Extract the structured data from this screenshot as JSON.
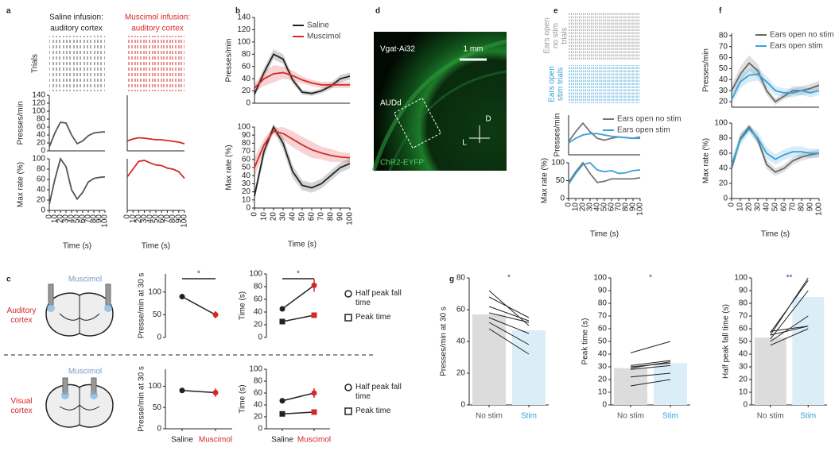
{
  "chart_data": [
    {
      "type": "line",
      "panel": "a",
      "title": "Saline infusion:",
      "subtitle": "auditory cortex",
      "raster_label": "Trials",
      "ylabel": "Presses/min",
      "x": [
        0,
        10,
        20,
        30,
        40,
        50,
        60,
        70,
        80,
        90,
        100
      ],
      "values": [
        10,
        45,
        72,
        70,
        40,
        18,
        25,
        38,
        45,
        47,
        48
      ],
      "color": "#555555",
      "xlim": [
        0,
        100
      ],
      "ylim": [
        0,
        140
      ],
      "yticks": [
        0,
        20,
        40,
        60,
        80,
        100,
        120,
        140
      ]
    },
    {
      "type": "line",
      "title": "Muscimol infusion:",
      "subtitle": "auditory cortex",
      "x": [
        0,
        10,
        20,
        30,
        40,
        50,
        60,
        70,
        80,
        90,
        100
      ],
      "values": [
        25,
        30,
        33,
        32,
        30,
        28,
        28,
        26,
        24,
        22,
        18
      ],
      "color": "#d62728",
      "xlim": [
        0,
        100
      ],
      "ylim": [
        0,
        140
      ]
    },
    {
      "type": "line",
      "ylabel": "Max rate (%)",
      "xlabel": "Time (s)",
      "x": [
        0,
        10,
        20,
        30,
        40,
        50,
        60,
        70,
        80,
        90,
        100
      ],
      "values": [
        12,
        60,
        100,
        85,
        40,
        22,
        35,
        55,
        62,
        64,
        65
      ],
      "color": "#555555",
      "xlim": [
        0,
        100
      ],
      "ylim": [
        0,
        100
      ],
      "yticks": [
        0,
        20,
        40,
        60,
        80,
        100
      ],
      "xticks": [
        0,
        10,
        20,
        30,
        40,
        50,
        60,
        70,
        80,
        90,
        100
      ]
    },
    {
      "type": "line",
      "xlabel": "Time (s)",
      "x": [
        0,
        10,
        20,
        30,
        40,
        50,
        60,
        70,
        80,
        90,
        100
      ],
      "values": [
        65,
        80,
        95,
        97,
        92,
        88,
        87,
        82,
        80,
        75,
        62
      ],
      "color": "#d62728",
      "xlim": [
        0,
        100
      ],
      "ylim": [
        0,
        100
      ],
      "xticks": [
        0,
        10,
        20,
        30,
        40,
        50,
        60,
        70,
        80,
        90,
        100
      ]
    },
    {
      "type": "line",
      "panel": "b",
      "ylabel": "Presses/min",
      "x": [
        0,
        10,
        20,
        30,
        40,
        50,
        60,
        70,
        80,
        90,
        100
      ],
      "series": [
        {
          "name": "Saline",
          "color": "#222222",
          "values": [
            15,
            50,
            80,
            72,
            38,
            18,
            16,
            20,
            28,
            40,
            44
          ],
          "error": [
            5,
            8,
            8,
            8,
            6,
            4,
            4,
            4,
            5,
            6,
            6
          ]
        },
        {
          "name": "Muscimol",
          "color": "#d62728",
          "values": [
            25,
            40,
            48,
            50,
            45,
            38,
            33,
            30,
            30,
            30,
            30
          ],
          "error": [
            6,
            12,
            14,
            10,
            8,
            6,
            5,
            5,
            5,
            5,
            5
          ]
        }
      ],
      "xlim": [
        0,
        100
      ],
      "ylim": [
        0,
        140
      ],
      "yticks": [
        0,
        20,
        40,
        60,
        80,
        100,
        120,
        140
      ]
    },
    {
      "type": "line",
      "ylabel": "Max rate (%)",
      "xlabel": "Time (s)",
      "x": [
        0,
        10,
        20,
        30,
        40,
        50,
        60,
        70,
        80,
        90,
        100
      ],
      "series": [
        {
          "color": "#222222",
          "values": [
            15,
            70,
            100,
            80,
            45,
            28,
            25,
            30,
            40,
            50,
            55
          ],
          "error": [
            6,
            8,
            4,
            8,
            8,
            6,
            6,
            6,
            6,
            6,
            6
          ]
        },
        {
          "color": "#d62728",
          "values": [
            50,
            78,
            95,
            92,
            85,
            78,
            72,
            68,
            65,
            63,
            62
          ],
          "error": [
            12,
            8,
            4,
            8,
            10,
            10,
            10,
            8,
            8,
            6,
            6
          ]
        }
      ],
      "xlim": [
        0,
        100
      ],
      "ylim": [
        0,
        100
      ],
      "yticks": [
        0,
        10,
        20,
        30,
        40,
        50,
        60,
        70,
        80,
        90,
        100
      ],
      "xticks": [
        0,
        10,
        20,
        30,
        40,
        50,
        60,
        70,
        80,
        90,
        100
      ]
    },
    {
      "type": "image",
      "panel": "d",
      "labels": [
        "Vgat-Ai32",
        "1 mm",
        "AUDd",
        "D",
        "L",
        "ChR2-EYFP"
      ]
    },
    {
      "type": "line",
      "panel": "e",
      "raster_labels": [
        [
          "Ears open",
          "no stim",
          "trials"
        ],
        [
          "Ears open",
          "stim trials"
        ]
      ],
      "ylabel": "Presses/min",
      "x": [
        0,
        10,
        20,
        30,
        40,
        50,
        60,
        70,
        80,
        90,
        100
      ],
      "series": [
        {
          "name": "Ears open no stim",
          "color": "#777777",
          "values": [
            20,
            35,
            48,
            35,
            25,
            22,
            25,
            27,
            26,
            25,
            27
          ]
        },
        {
          "name": "Ears open stim",
          "color": "#3a9fd6",
          "values": [
            18,
            25,
            30,
            32,
            32,
            30,
            28,
            27,
            26,
            25,
            25
          ]
        }
      ],
      "xlim": [
        0,
        100
      ],
      "ylim": [
        0,
        60
      ]
    },
    {
      "type": "line",
      "ylabel": "Max rate (%)",
      "xlabel": "Time (s)",
      "x": [
        0,
        10,
        20,
        30,
        40,
        50,
        60,
        70,
        80,
        90,
        100
      ],
      "series": [
        {
          "color": "#777777",
          "values": [
            45,
            75,
            100,
            70,
            45,
            48,
            55,
            55,
            55,
            55,
            58
          ]
        },
        {
          "color": "#3a9fd6",
          "values": [
            40,
            70,
            95,
            100,
            80,
            75,
            78,
            70,
            72,
            78,
            80
          ]
        }
      ],
      "xlim": [
        0,
        100
      ],
      "ylim": [
        0,
        100
      ],
      "yticks": [
        0,
        50,
        100
      ],
      "xticks": [
        0,
        10,
        20,
        30,
        40,
        50,
        60,
        70,
        80,
        90,
        100
      ]
    },
    {
      "type": "line",
      "panel": "f",
      "ylabel": "Presses/min",
      "x": [
        0,
        10,
        20,
        30,
        40,
        50,
        60,
        70,
        80,
        90,
        100
      ],
      "series": [
        {
          "name": "Ears open no stim",
          "color": "#666666",
          "values": [
            30,
            45,
            55,
            48,
            30,
            20,
            25,
            30,
            30,
            32,
            35
          ],
          "error": [
            5,
            7,
            7,
            6,
            4,
            3,
            3,
            4,
            4,
            4,
            4
          ]
        },
        {
          "name": "Ears open stim",
          "color": "#3a9fd6",
          "values": [
            22,
            38,
            44,
            45,
            38,
            30,
            28,
            28,
            30,
            28,
            30
          ],
          "error": [
            4,
            6,
            6,
            6,
            5,
            4,
            4,
            4,
            4,
            4,
            4
          ]
        }
      ],
      "xlim": [
        0,
        100
      ],
      "ylim": [
        15,
        82
      ],
      "yticks": [
        20,
        30,
        40,
        50,
        60,
        70,
        80
      ]
    },
    {
      "type": "line",
      "ylabel": "Max rate (%)",
      "xlabel": "Time (s)",
      "x": [
        0,
        10,
        20,
        30,
        40,
        50,
        60,
        70,
        80,
        90,
        100
      ],
      "series": [
        {
          "color": "#666666",
          "values": [
            40,
            80,
            95,
            78,
            45,
            35,
            40,
            50,
            55,
            58,
            60
          ],
          "error": [
            5,
            6,
            4,
            6,
            6,
            5,
            5,
            5,
            5,
            5,
            5
          ]
        },
        {
          "color": "#3a9fd6",
          "values": [
            45,
            78,
            92,
            80,
            60,
            52,
            58,
            62,
            62,
            60,
            60
          ],
          "error": [
            8,
            8,
            5,
            8,
            8,
            7,
            7,
            7,
            7,
            6,
            6
          ]
        }
      ],
      "xlim": [
        0,
        100
      ],
      "ylim": [
        0,
        100
      ],
      "yticks": [
        0,
        20,
        40,
        60,
        80,
        100
      ],
      "xticks": [
        0,
        10,
        20,
        30,
        40,
        50,
        60,
        70,
        80,
        90,
        100
      ]
    },
    {
      "type": "dot-pair",
      "panel": "c",
      "infusion": "Muscimol",
      "region": "Auditory cortex",
      "ylabel": "Presse/min at 30 s",
      "values": [
        90,
        50
      ],
      "error": [
        6,
        8
      ],
      "point_colors": [
        "#222222",
        "#d62728"
      ],
      "ylim": [
        0,
        140
      ],
      "yticks": [
        0,
        50,
        100
      ],
      "significance": "*"
    },
    {
      "type": "dot-pair",
      "ylabel": "Time (s)",
      "series": [
        {
          "name": "Half peak fall time",
          "marker": "circle",
          "values": [
            45,
            82
          ],
          "error": [
            3,
            10
          ]
        },
        {
          "name": "Peak time",
          "marker": "square",
          "values": [
            25,
            35
          ],
          "error": [
            2,
            4
          ]
        }
      ],
      "point_colors": [
        "#222222",
        "#d62728"
      ],
      "ylim": [
        0,
        100
      ],
      "yticks": [
        0,
        20,
        40,
        60,
        80,
        100
      ],
      "significance": "*"
    },
    {
      "type": "dot-pair",
      "infusion": "Muscimol",
      "region": "Visual cortex",
      "ylabel": "Presse/min at 30 s",
      "categories": [
        "Saline",
        "Muscimol"
      ],
      "category_colors": [
        "#222222",
        "#d62728"
      ],
      "values": [
        90,
        85
      ],
      "error": [
        6,
        10
      ],
      "point_colors": [
        "#222222",
        "#d62728"
      ],
      "ylim": [
        0,
        140
      ],
      "yticks": [
        0,
        50,
        100
      ]
    },
    {
      "type": "dot-pair",
      "ylabel": "Time (s)",
      "categories": [
        "Saline",
        "Muscimol"
      ],
      "category_colors": [
        "#222222",
        "#d62728"
      ],
      "series": [
        {
          "name": "Half peak fall time",
          "marker": "circle",
          "values": [
            47,
            60
          ],
          "error": [
            3,
            8
          ]
        },
        {
          "name": "Peak time",
          "marker": "square",
          "values": [
            25,
            28
          ],
          "error": [
            2,
            2
          ]
        }
      ],
      "point_colors": [
        "#222222",
        "#d62728"
      ],
      "ylim": [
        0,
        100
      ],
      "yticks": [
        0,
        20,
        40,
        60,
        80,
        100
      ]
    },
    {
      "type": "bar",
      "panel": "g",
      "ylabel": "Presses/min at 30 s",
      "categories": [
        "No stim",
        "Stim"
      ],
      "category_colors": [
        "#555555",
        "#3a9fd6"
      ],
      "values": [
        57,
        47
      ],
      "colors": [
        "#dcdcdc",
        "#dbeef8"
      ],
      "pairs": [
        [
          72,
          50
        ],
        [
          68,
          55
        ],
        [
          62,
          53
        ],
        [
          58,
          52
        ],
        [
          55,
          45
        ],
        [
          52,
          38
        ],
        [
          48,
          32
        ]
      ],
      "ylim": [
        0,
        80
      ],
      "yticks": [
        0,
        20,
        40,
        60,
        80
      ],
      "significance": "*"
    },
    {
      "type": "bar",
      "ylabel": "Peak time (s)",
      "categories": [
        "No stim",
        "Stim"
      ],
      "category_colors": [
        "#555555",
        "#3a9fd6"
      ],
      "values": [
        29,
        33
      ],
      "colors": [
        "#dcdcdc",
        "#dbeef8"
      ],
      "pairs": [
        [
          41,
          50
        ],
        [
          31,
          35
        ],
        [
          30,
          33
        ],
        [
          29,
          34
        ],
        [
          28,
          31
        ],
        [
          22,
          25
        ],
        [
          15,
          20
        ]
      ],
      "ylim": [
        0,
        100
      ],
      "yticks": [
        0,
        10,
        20,
        30,
        40,
        50,
        60,
        70,
        80,
        90,
        100
      ],
      "significance": "*"
    },
    {
      "type": "bar",
      "ylabel": "Half peak fall time (s)",
      "categories": [
        "No stim",
        "Stim"
      ],
      "category_colors": [
        "#555555",
        "#3a9fd6"
      ],
      "values": [
        53,
        85
      ],
      "colors": [
        "#dcdcdc",
        "#dbeef8"
      ],
      "pairs": [
        [
          55,
          100
        ],
        [
          57,
          98
        ],
        [
          52,
          90
        ],
        [
          50,
          70
        ],
        [
          58,
          62
        ],
        [
          55,
          62
        ],
        [
          47,
          60
        ]
      ],
      "ylim": [
        0,
        100
      ],
      "yticks": [
        0,
        10,
        20,
        30,
        40,
        50,
        60,
        70,
        80,
        90,
        100
      ],
      "significance": "**"
    }
  ]
}
